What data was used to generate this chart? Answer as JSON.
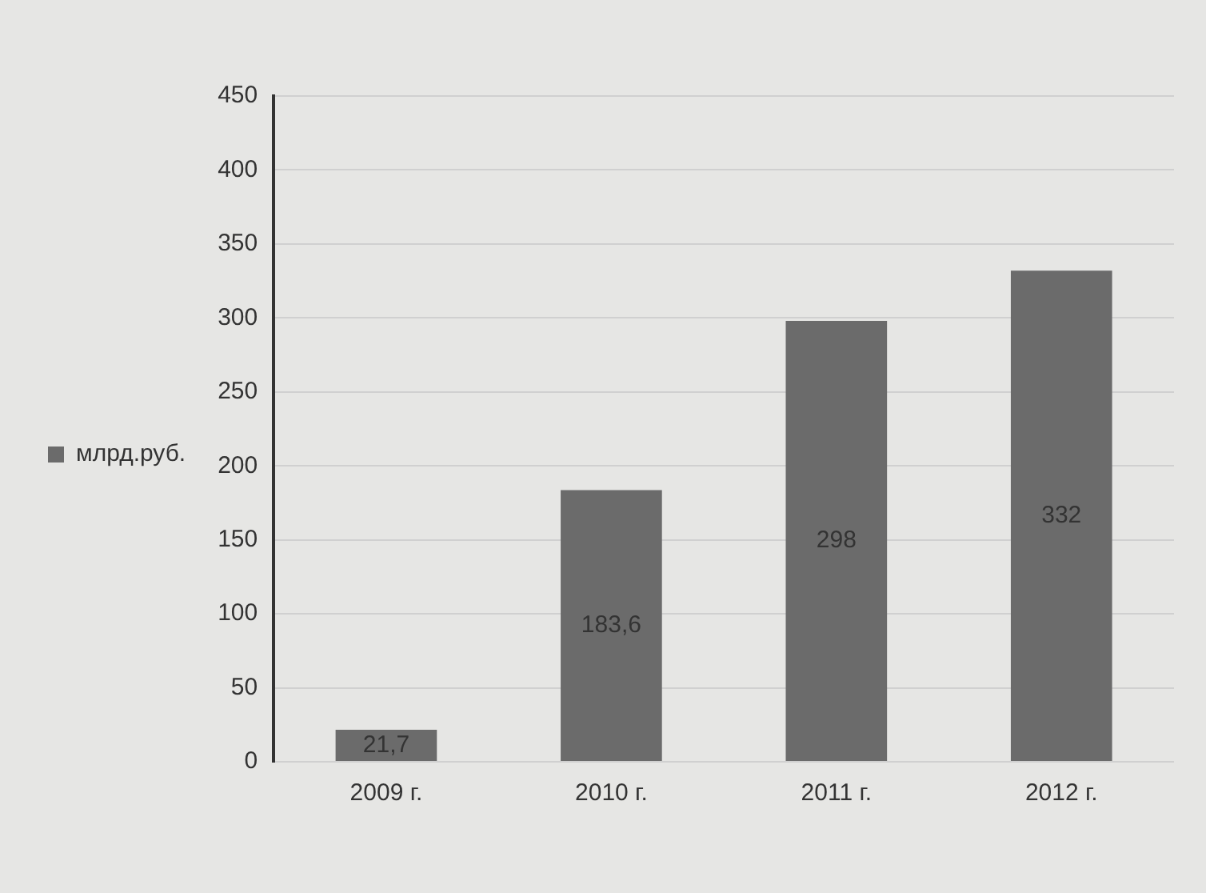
{
  "chart_data": {
    "type": "bar",
    "categories": [
      "2009 г.",
      "2010 г.",
      "2011 г.",
      "2012 г."
    ],
    "series": [
      {
        "name": "млрд.руб.",
        "color": "#6b6b6b",
        "values": [
          21.7,
          183.6,
          298,
          332
        ],
        "value_labels": [
          "21,7",
          "183,6",
          "298",
          "332"
        ]
      }
    ],
    "ylim": [
      0,
      450
    ],
    "yticks": [
      0,
      50,
      100,
      150,
      200,
      250,
      300,
      350,
      400,
      450
    ],
    "grid": "y",
    "legend": "left"
  }
}
